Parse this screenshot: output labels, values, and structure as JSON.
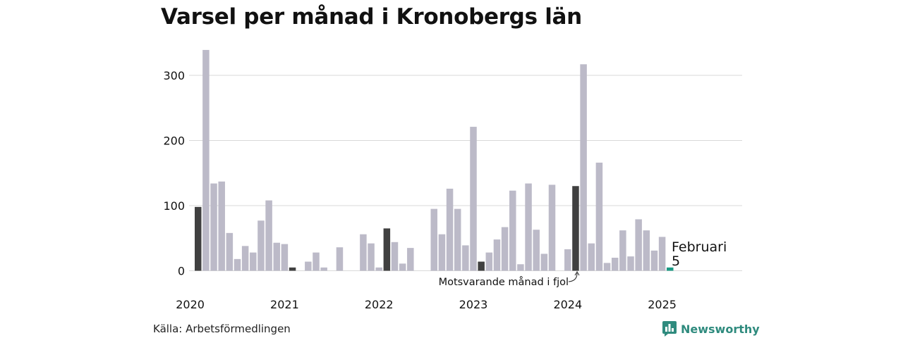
{
  "title": "Varsel per månad i Kronobergs län",
  "source": "Källa: Arbetsförmedlingen",
  "brand": "Newsworthy",
  "colors": {
    "bar": "#bcbac8",
    "highlight": "#404040",
    "current": "#1a9a84",
    "grid": "#d9d9d9",
    "brand": "#2f8b7e"
  },
  "chart_data": {
    "type": "bar",
    "title": "Varsel per månad i Kronobergs län",
    "ylim": [
      0,
      340
    ],
    "y_ticks": [
      0,
      100,
      200,
      300
    ],
    "x_ticks": [
      "2020",
      "2021",
      "2022",
      "2023",
      "2024",
      "2025"
    ],
    "x": [
      "2020-02",
      "2020-03",
      "2020-04",
      "2020-05",
      "2020-06",
      "2020-07",
      "2020-08",
      "2020-09",
      "2020-10",
      "2020-11",
      "2020-12",
      "2021-01",
      "2021-02",
      "2021-03",
      "2021-04",
      "2021-05",
      "2021-06",
      "2021-07",
      "2021-08",
      "2021-09",
      "2021-10",
      "2021-11",
      "2021-12",
      "2022-01",
      "2022-02",
      "2022-03",
      "2022-04",
      "2022-05",
      "2022-06",
      "2022-07",
      "2022-08",
      "2022-09",
      "2022-10",
      "2022-11",
      "2022-12",
      "2023-01",
      "2023-02",
      "2023-03",
      "2023-04",
      "2023-05",
      "2023-06",
      "2023-07",
      "2023-08",
      "2023-09",
      "2023-10",
      "2023-11",
      "2023-12",
      "2024-01",
      "2024-02",
      "2024-03",
      "2024-04",
      "2024-05",
      "2024-06",
      "2024-07",
      "2024-08",
      "2024-09",
      "2024-10",
      "2024-11",
      "2024-12",
      "2025-01",
      "2025-02"
    ],
    "values": [
      98,
      339,
      134,
      137,
      58,
      18,
      38,
      28,
      77,
      108,
      43,
      41,
      5,
      0,
      14,
      28,
      5,
      0,
      36,
      0,
      0,
      56,
      42,
      5,
      65,
      44,
      11,
      35,
      0,
      0,
      95,
      56,
      126,
      95,
      39,
      221,
      14,
      28,
      48,
      67,
      123,
      10,
      134,
      63,
      26,
      132,
      0,
      33,
      130,
      317,
      42,
      166,
      12,
      20,
      62,
      22,
      79,
      62,
      31,
      52,
      5
    ],
    "highlighted": [
      "2020-02",
      "2021-02",
      "2022-02",
      "2023-02",
      "2024-02"
    ],
    "current": "2025-02",
    "annotations": {
      "current_month": "Februari",
      "current_value": "5",
      "previous_year": "Motsvarande månad i fjol"
    }
  }
}
